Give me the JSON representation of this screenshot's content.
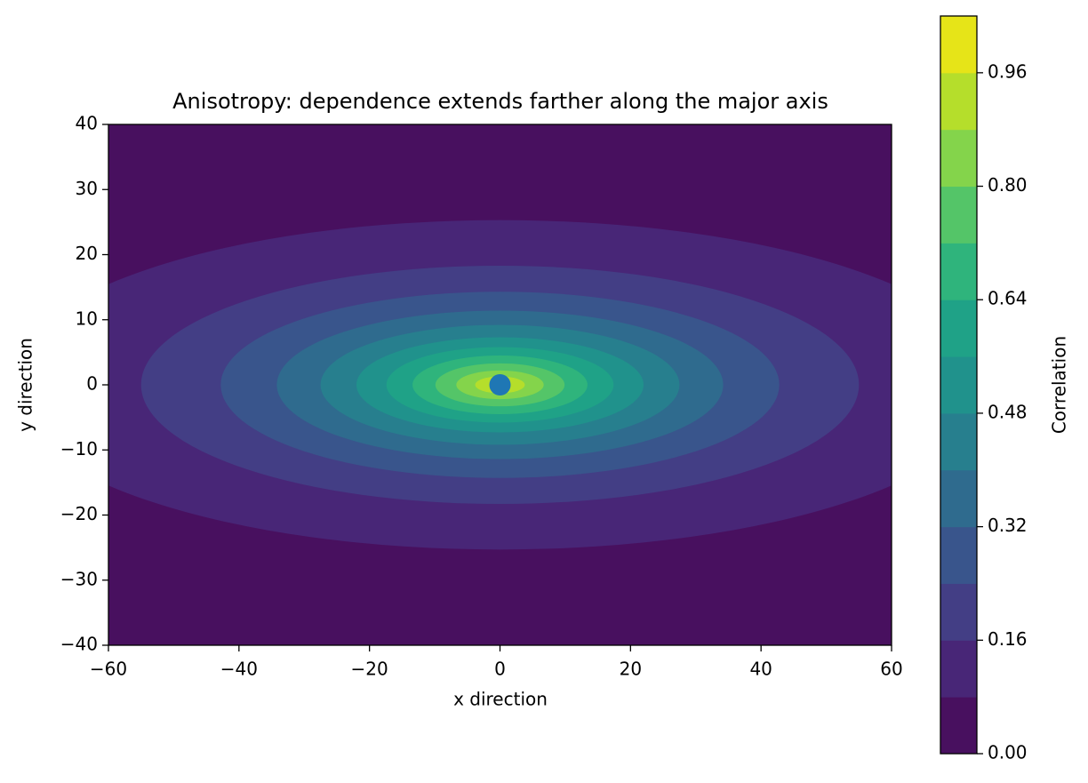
{
  "chart_data": {
    "type": "contour",
    "title": "Anisotropy: dependence extends farther along the major axis",
    "x_label": "x direction",
    "y_label": "y direction",
    "colorbar_label": "Correlation",
    "xlim": [
      -60,
      60
    ],
    "ylim": [
      -40,
      40
    ],
    "xticks": [
      {
        "value": -60,
        "label": "−60"
      },
      {
        "value": -40,
        "label": "−40"
      },
      {
        "value": -20,
        "label": "−20"
      },
      0,
      20,
      40,
      60
    ],
    "yticks": [
      {
        "value": -40,
        "label": "−40"
      },
      {
        "value": -30,
        "label": "−30"
      },
      {
        "value": -20,
        "label": "−20"
      },
      {
        "value": -10,
        "label": "−10"
      },
      0,
      10,
      20,
      30,
      40
    ],
    "levels": [
      0,
      0.08,
      0.16,
      0.24,
      0.32,
      0.4,
      0.48,
      0.56,
      0.64,
      0.72,
      0.8,
      0.88,
      0.96,
      1.04
    ],
    "colors": [
      "#48105f",
      "#482677",
      "#433e85",
      "#39558c",
      "#2f6b8e",
      "#277f8e",
      "#20928c",
      "#1fa287",
      "#2fb47c",
      "#54c568",
      "#84d44b",
      "#b5de2b",
      "#e6e418"
    ],
    "colorbar_ticks": [
      {
        "value": 0,
        "label": "0.00"
      },
      {
        "value": 0.16,
        "label": "0.16"
      },
      {
        "value": 0.32,
        "label": "0.32"
      },
      {
        "value": 0.48,
        "label": "0.48"
      },
      {
        "value": 0.64,
        "label": "0.64"
      },
      {
        "value": 0.8,
        "label": "0.80"
      },
      {
        "value": 0.96,
        "label": "0.96"
      }
    ],
    "contours": [
      {
        "level": 0.08,
        "rx": 75.8,
        "ry": 25.3
      },
      {
        "level": 0.16,
        "rx": 55.0,
        "ry": 18.3
      },
      {
        "level": 0.24,
        "rx": 42.8,
        "ry": 14.3
      },
      {
        "level": 0.32,
        "rx": 34.2,
        "ry": 11.4
      },
      {
        "level": 0.4,
        "rx": 27.5,
        "ry": 9.2
      },
      {
        "level": 0.48,
        "rx": 22.0,
        "ry": 7.3
      },
      {
        "level": 0.56,
        "rx": 17.4,
        "ry": 5.8
      },
      {
        "level": 0.64,
        "rx": 13.4,
        "ry": 4.5
      },
      {
        "level": 0.72,
        "rx": 9.9,
        "ry": 3.3
      },
      {
        "level": 0.8,
        "rx": 6.7,
        "ry": 2.2
      },
      {
        "level": 0.88,
        "rx": 3.8,
        "ry": 1.3
      },
      {
        "level": 0.96,
        "rx": 1.2,
        "ry": 0.4
      }
    ],
    "point": {
      "x": 0,
      "y": 0,
      "color": "#1f77b4"
    }
  }
}
